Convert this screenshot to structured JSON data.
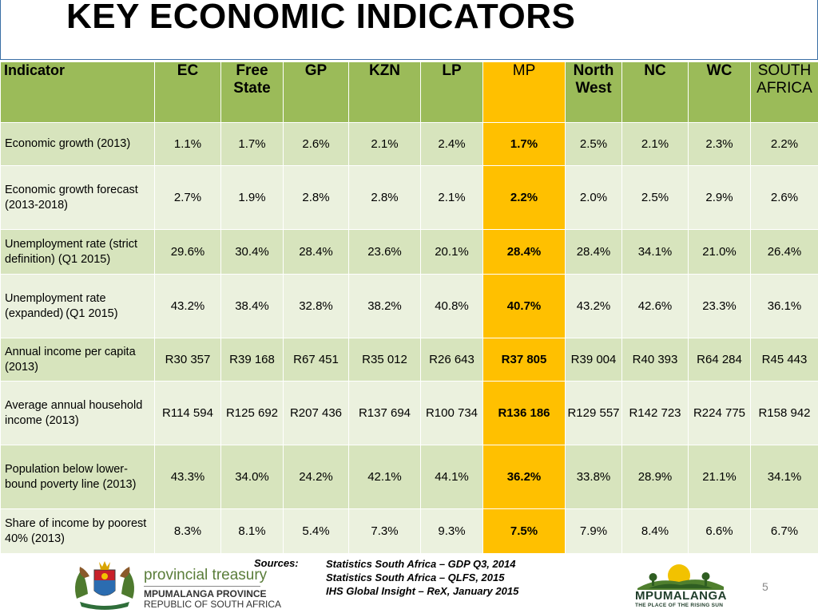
{
  "title": "KEY ECONOMIC INDICATORS",
  "table": {
    "header_first": "Indicator",
    "columns": [
      [
        "EC"
      ],
      [
        "Free",
        "State"
      ],
      [
        "GP"
      ],
      [
        "KZN"
      ],
      [
        "LP"
      ],
      [
        "MP"
      ],
      [
        "North",
        "West"
      ],
      [
        "NC"
      ],
      [
        "WC"
      ],
      [
        "SOUTH",
        "AFRICA"
      ]
    ],
    "rows": [
      {
        "label": "Economic growth (2013)",
        "values": [
          "1.1%",
          "1.7%",
          "2.6%",
          "2.1%",
          "2.4%",
          "1.7%",
          "2.5%",
          "2.1%",
          "2.3%",
          "2.2%"
        ]
      },
      {
        "label": "Economic growth forecast (2013-2018)",
        "values": [
          "2.7%",
          "1.9%",
          "2.8%",
          "2.8%",
          "2.1%",
          "2.2%",
          "2.0%",
          "2.5%",
          "2.9%",
          "2.6%"
        ]
      },
      {
        "label": "Unemployment rate (strict definition) (Q1 2015)",
        "values": [
          "29.6%",
          "30.4%",
          "28.4%",
          "23.6%",
          "20.1%",
          "28.4%",
          "28.4%",
          "34.1%",
          "21.0%",
          "26.4%"
        ]
      },
      {
        "label": "Unemployment rate (expanded) (Q1 2015)",
        "values": [
          "43.2%",
          "38.4%",
          "32.8%",
          "38.2%",
          "40.8%",
          "40.7%",
          "43.2%",
          "42.6%",
          "23.3%",
          "36.1%"
        ]
      },
      {
        "label": "Annual income per capita (2013)",
        "values": [
          "R30 357",
          "R39 168",
          "R67 451",
          "R35 012",
          "R26 643",
          "R37 805",
          "R39 004",
          "R40 393",
          "R64 284",
          "R45 443"
        ]
      },
      {
        "label": "Average annual household income (2013)",
        "values": [
          "R114 594",
          "R125 692",
          "R207 436",
          "R137 694",
          "R100 734",
          "R136 186",
          "R129 557",
          "R142 723",
          "R224 775",
          "R158 942"
        ]
      },
      {
        "label": "Population below lower-bound poverty line (2013)",
        "values": [
          "43.3%",
          "34.0%",
          "24.2%",
          "42.1%",
          "44.1%",
          "36.2%",
          "33.8%",
          "28.9%",
          "21.1%",
          "34.1%"
        ]
      },
      {
        "label": "Share of income by poorest 40% (2013)",
        "values": [
          "8.3%",
          "8.1%",
          "5.4%",
          "7.3%",
          "9.3%",
          "7.5%",
          "7.9%",
          "8.4%",
          "6.6%",
          "6.7%"
        ]
      }
    ]
  },
  "sources": {
    "label": "Sources:",
    "items": [
      "Statistics South Africa – GDP Q3, 2014",
      "Statistics South Africa – QLFS, 2015",
      "IHS Global Insight – ReX, January 2015"
    ]
  },
  "footer": {
    "treasury_name": "provincial treasury",
    "treasury_province": "MPUMALANGA PROVINCE",
    "treasury_country": "REPUBLIC OF SOUTH AFRICA",
    "mp_logo_name": "MPUMALANGA",
    "mp_logo_tagline": "THE PLACE OF THE RISING SUN",
    "page_number": "5"
  },
  "colors": {
    "header_green": "#9bbb59",
    "row_dark": "#d7e4bd",
    "row_light": "#ebf1de",
    "highlight": "#ffc000"
  }
}
